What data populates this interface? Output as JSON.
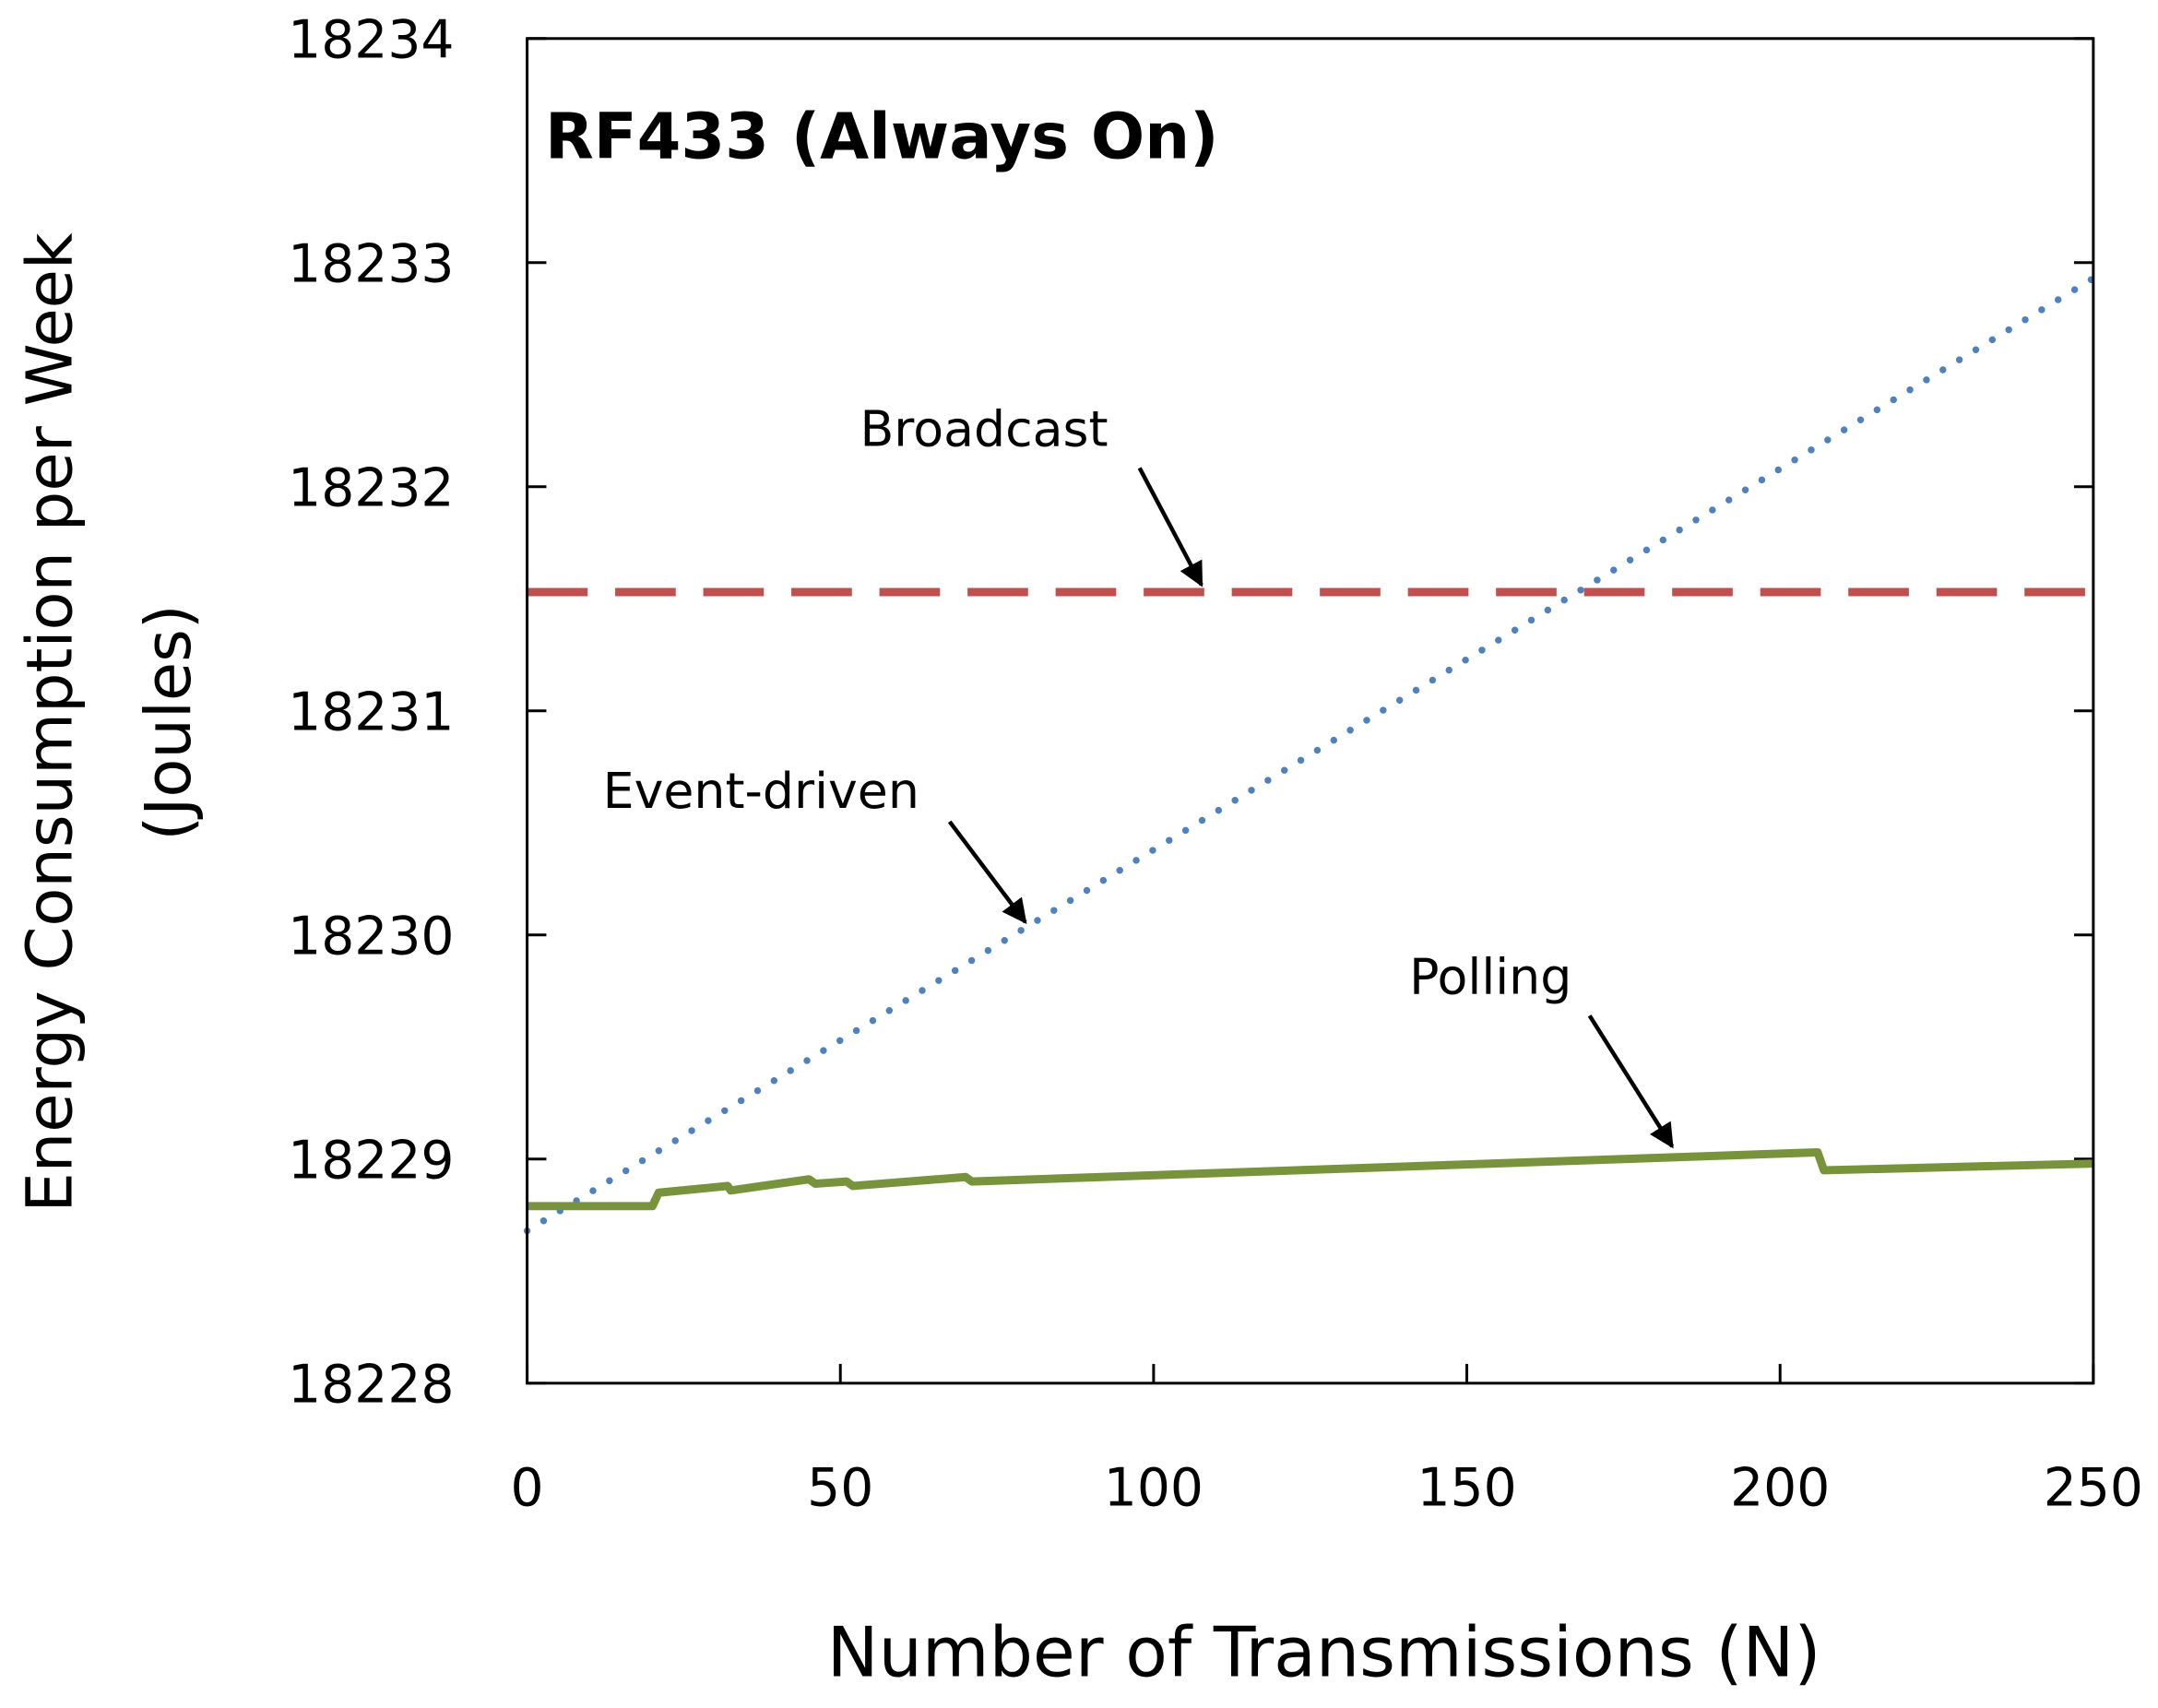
{
  "chart_data": {
    "type": "line",
    "title": "RF433 (Always On)",
    "xlabel": "Number of Transmissions (N)",
    "ylabel_lines": [
      "Energy Consumption per Week",
      "(Joules)"
    ],
    "xlim": [
      0,
      250
    ],
    "ylim": [
      18228,
      18234
    ],
    "xticks": [
      0,
      50,
      100,
      150,
      200,
      250
    ],
    "yticks": [
      18228,
      18229,
      18230,
      18231,
      18232,
      18233,
      18234
    ],
    "grid": false,
    "legend": "none",
    "series": [
      {
        "name": "Broadcast",
        "style": "dashed",
        "color": "#c0504d",
        "x": [
          0,
          250
        ],
        "y": [
          18231.53,
          18231.53
        ]
      },
      {
        "name": "Event-driven",
        "style": "dotted",
        "color": "#4f81bd",
        "x": [
          0,
          250
        ],
        "y": [
          18228.68,
          18232.93
        ]
      },
      {
        "name": "Polling",
        "style": "solid",
        "color": "#77933c",
        "x": [
          0,
          20,
          21,
          32,
          32.5,
          45,
          46,
          51,
          52,
          70,
          71,
          206,
          207,
          250
        ],
        "y": [
          18228.79,
          18228.79,
          18228.85,
          18228.88,
          18228.86,
          18228.91,
          18228.89,
          18228.9,
          18228.88,
          18228.92,
          18228.9,
          18229.03,
          18228.95,
          18228.98
        ]
      }
    ],
    "annotations": [
      {
        "text": "Broadcast",
        "series": "Broadcast"
      },
      {
        "text": "Event-driven",
        "series": "Event-driven"
      },
      {
        "text": "Polling",
        "series": "Polling"
      }
    ]
  }
}
